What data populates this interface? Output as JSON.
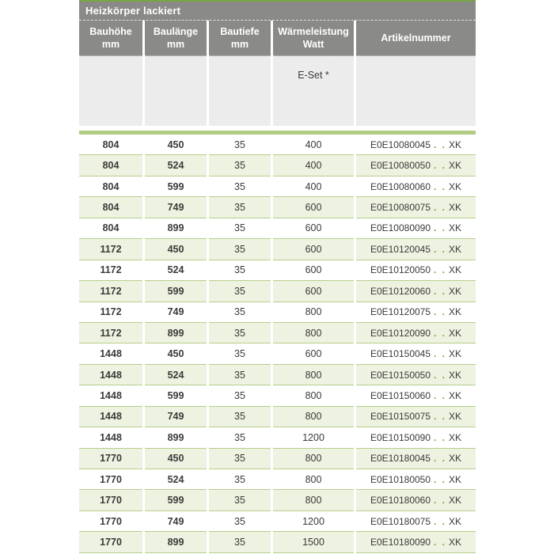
{
  "table": {
    "title": "Heizkörper lackiert",
    "columns": [
      {
        "title": "Bauhöhe",
        "unit": "mm"
      },
      {
        "title": "Baulänge",
        "unit": "mm"
      },
      {
        "title": "Bautiefe",
        "unit": "mm"
      },
      {
        "title": "Wärmeleistung",
        "unit": "Watt"
      },
      {
        "title": "Artikelnummer",
        "unit": ""
      }
    ],
    "eset_label": "E-Set *",
    "artikel_dots": ". .",
    "artikel_suffix": "XK",
    "rows": [
      {
        "bauhoehe": "804",
        "baulaenge": "450",
        "bautiefe": "35",
        "watt": "400",
        "artikel_prefix": "E0E10080045"
      },
      {
        "bauhoehe": "804",
        "baulaenge": "524",
        "bautiefe": "35",
        "watt": "400",
        "artikel_prefix": "E0E10080050"
      },
      {
        "bauhoehe": "804",
        "baulaenge": "599",
        "bautiefe": "35",
        "watt": "400",
        "artikel_prefix": "E0E10080060"
      },
      {
        "bauhoehe": "804",
        "baulaenge": "749",
        "bautiefe": "35",
        "watt": "600",
        "artikel_prefix": "E0E10080075"
      },
      {
        "bauhoehe": "804",
        "baulaenge": "899",
        "bautiefe": "35",
        "watt": "600",
        "artikel_prefix": "E0E10080090"
      },
      {
        "bauhoehe": "1172",
        "baulaenge": "450",
        "bautiefe": "35",
        "watt": "600",
        "artikel_prefix": "E0E10120045"
      },
      {
        "bauhoehe": "1172",
        "baulaenge": "524",
        "bautiefe": "35",
        "watt": "600",
        "artikel_prefix": "E0E10120050"
      },
      {
        "bauhoehe": "1172",
        "baulaenge": "599",
        "bautiefe": "35",
        "watt": "600",
        "artikel_prefix": "E0E10120060"
      },
      {
        "bauhoehe": "1172",
        "baulaenge": "749",
        "bautiefe": "35",
        "watt": "800",
        "artikel_prefix": "E0E10120075"
      },
      {
        "bauhoehe": "1172",
        "baulaenge": "899",
        "bautiefe": "35",
        "watt": "800",
        "artikel_prefix": "E0E10120090"
      },
      {
        "bauhoehe": "1448",
        "baulaenge": "450",
        "bautiefe": "35",
        "watt": "600",
        "artikel_prefix": "E0E10150045"
      },
      {
        "bauhoehe": "1448",
        "baulaenge": "524",
        "bautiefe": "35",
        "watt": "800",
        "artikel_prefix": "E0E10150050"
      },
      {
        "bauhoehe": "1448",
        "baulaenge": "599",
        "bautiefe": "35",
        "watt": "800",
        "artikel_prefix": "E0E10150060"
      },
      {
        "bauhoehe": "1448",
        "baulaenge": "749",
        "bautiefe": "35",
        "watt": "800",
        "artikel_prefix": "E0E10150075"
      },
      {
        "bauhoehe": "1448",
        "baulaenge": "899",
        "bautiefe": "35",
        "watt": "1200",
        "artikel_prefix": "E0E10150090"
      },
      {
        "bauhoehe": "1770",
        "baulaenge": "450",
        "bautiefe": "35",
        "watt": "800",
        "artikel_prefix": "E0E10180045"
      },
      {
        "bauhoehe": "1770",
        "baulaenge": "524",
        "bautiefe": "35",
        "watt": "800",
        "artikel_prefix": "E0E10180050"
      },
      {
        "bauhoehe": "1770",
        "baulaenge": "599",
        "bautiefe": "35",
        "watt": "800",
        "artikel_prefix": "E0E10180060"
      },
      {
        "bauhoehe": "1770",
        "baulaenge": "749",
        "bautiefe": "35",
        "watt": "1200",
        "artikel_prefix": "E0E10180075"
      },
      {
        "bauhoehe": "1770",
        "baulaenge": "899",
        "bautiefe": "35",
        "watt": "1500",
        "artikel_prefix": "E0E10180090"
      }
    ],
    "colors": {
      "accent_green": "#79a544",
      "band_green": "#b2cd83",
      "separator_green": "#b6ce8c",
      "row_green": "#eef2e0",
      "header_gray": "#8a8a88",
      "empty_gray": "#ececec",
      "text_dark": "#3a3a39",
      "dots_green": "#76a73f"
    }
  }
}
